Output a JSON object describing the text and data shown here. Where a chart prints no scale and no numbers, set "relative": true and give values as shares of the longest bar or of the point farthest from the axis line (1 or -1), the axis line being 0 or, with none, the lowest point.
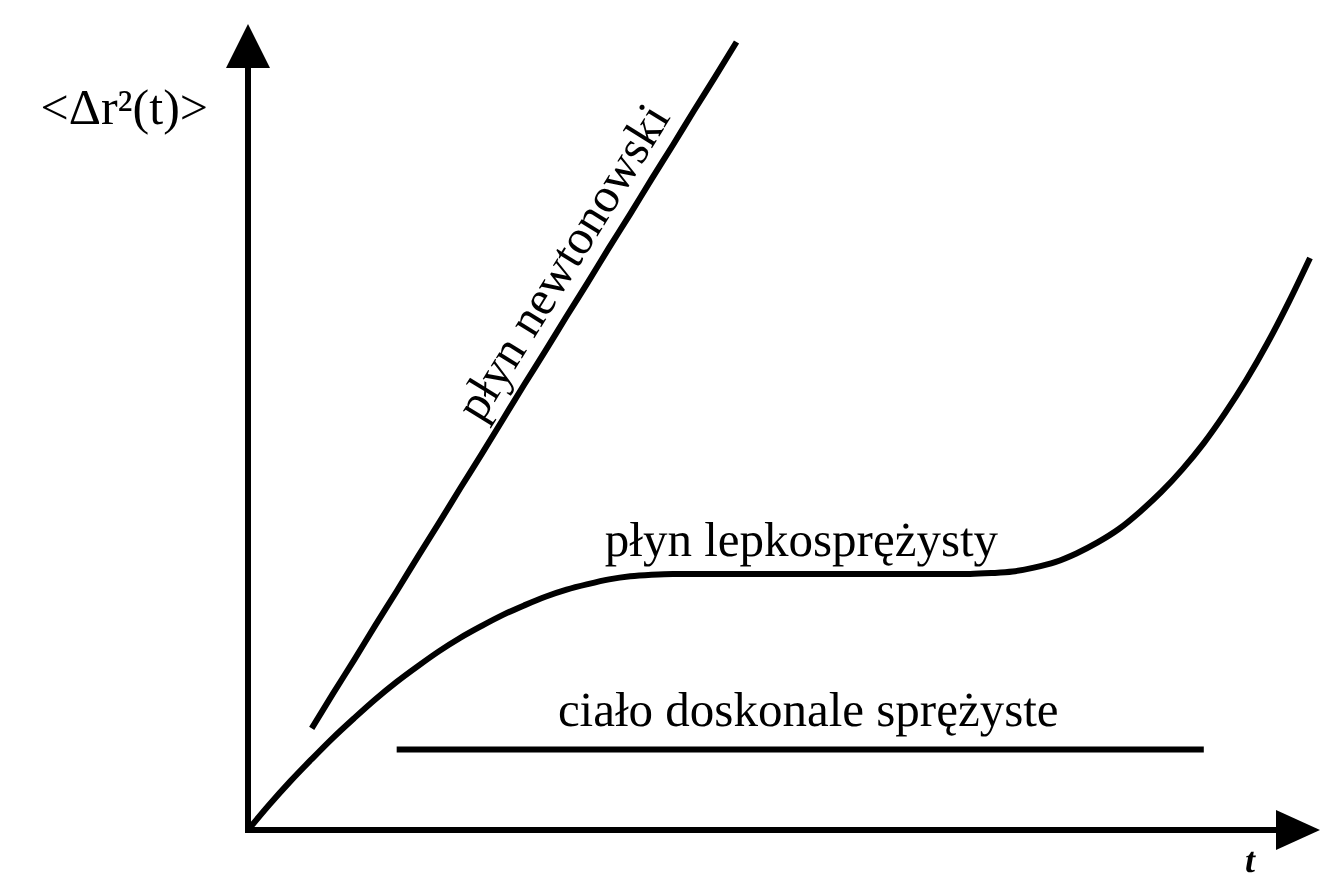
{
  "chart_data": {
    "type": "line",
    "relative": true,
    "ylabel": "<Δr²(t)>",
    "xlabel": "t",
    "categories": [
      null,
      null,
      null,
      null,
      null,
      null,
      null,
      null,
      null,
      null,
      null,
      null,
      null,
      null,
      null,
      null,
      null,
      null,
      null,
      null,
      null,
      null,
      null,
      null,
      null,
      null,
      null,
      null,
      null,
      null,
      null,
      null,
      null,
      null,
      null,
      null,
      null,
      null,
      null,
      null,
      null,
      null,
      null,
      null,
      null,
      null,
      null,
      null,
      null,
      null,
      null
    ],
    "series": [
      {
        "name": "płyn newtonowski",
        "color": "#000000",
        "values": [
          null,
          null,
          null,
          0.129,
          0.173,
          0.216,
          0.26,
          0.303,
          0.347,
          0.39,
          0.434,
          0.477,
          0.521,
          0.565,
          0.608,
          0.652,
          0.695,
          0.739,
          0.782,
          0.826,
          0.869,
          0.913,
          0.956,
          1.0,
          null,
          null,
          null,
          null,
          null,
          null,
          null,
          null,
          null,
          null,
          null,
          null,
          null,
          null,
          null,
          null,
          null,
          null,
          null,
          null,
          null,
          null,
          null,
          null,
          null,
          null,
          null
        ]
      },
      {
        "name": "płyn lepkosprężysty",
        "color": "#000000",
        "values": [
          0,
          0.032,
          0.062,
          0.09,
          0.117,
          0.142,
          0.166,
          0.188,
          0.208,
          0.227,
          0.244,
          0.259,
          0.273,
          0.285,
          0.296,
          0.305,
          0.312,
          0.318,
          0.322,
          0.324,
          0.325,
          0.325,
          0.325,
          0.325,
          0.325,
          0.325,
          0.325,
          0.325,
          0.325,
          0.325,
          0.325,
          0.325,
          0.325,
          0.325,
          0.325,
          0.326,
          0.328,
          0.333,
          0.34,
          0.351,
          0.365,
          0.382,
          0.404,
          0.429,
          0.458,
          0.491,
          0.529,
          0.571,
          0.618,
          0.67,
          0.726
        ]
      },
      {
        "name": "ciało doskonale sprężyste",
        "color": "#000000",
        "values": [
          null,
          null,
          null,
          null,
          null,
          null,
          null,
          0.102,
          0.102,
          0.102,
          0.102,
          0.102,
          0.102,
          0.102,
          0.102,
          0.102,
          0.102,
          0.102,
          0.102,
          0.102,
          0.102,
          0.102,
          0.102,
          0.102,
          0.102,
          0.102,
          0.102,
          0.102,
          0.102,
          0.102,
          0.102,
          0.102,
          0.102,
          0.102,
          0.102,
          0.102,
          0.102,
          0.102,
          0.102,
          0.102,
          0.102,
          0.102,
          0.102,
          0.102,
          0.102,
          0.102,
          null,
          null,
          null,
          null,
          null
        ]
      }
    ]
  }
}
